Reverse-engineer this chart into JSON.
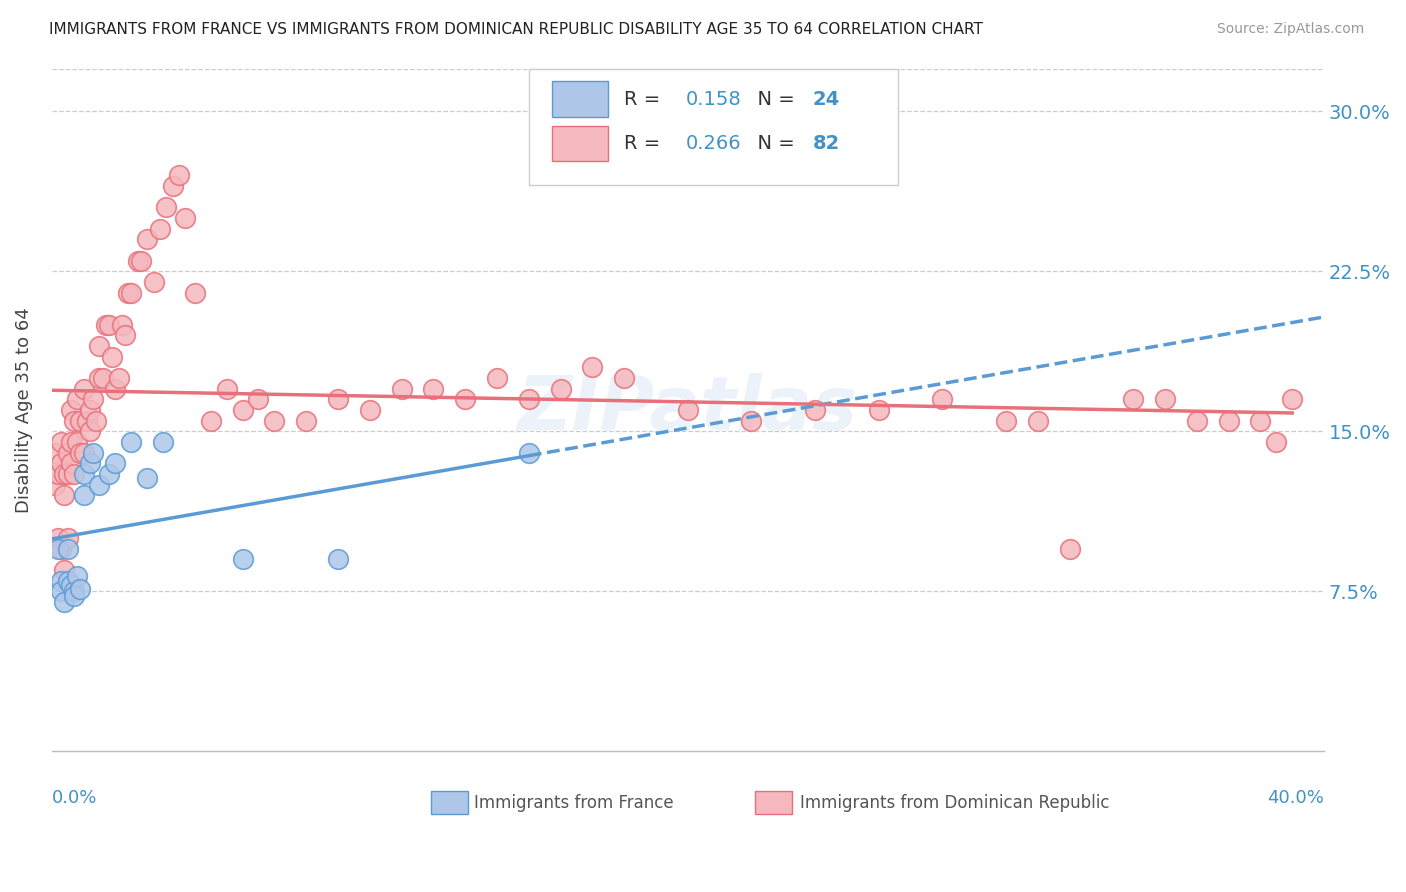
{
  "title": "IMMIGRANTS FROM FRANCE VS IMMIGRANTS FROM DOMINICAN REPUBLIC DISABILITY AGE 35 TO 64 CORRELATION CHART",
  "source": "Source: ZipAtlas.com",
  "ylabel": "Disability Age 35 to 64",
  "xlim": [
    0.0,
    0.4
  ],
  "ylim": [
    0.0,
    0.32
  ],
  "yticks": [
    0.075,
    0.15,
    0.225,
    0.3
  ],
  "ytick_labels": [
    "7.5%",
    "15.0%",
    "22.5%",
    "30.0%"
  ],
  "france_color": "#5b9bd5",
  "france_color_fill": "#aec7e8",
  "dr_color": "#e8707a",
  "dr_color_fill": "#f4b8be",
  "france_R": 0.158,
  "france_N": 24,
  "dr_R": 0.266,
  "dr_N": 82,
  "france_scatter_x": [
    0.002,
    0.003,
    0.003,
    0.004,
    0.005,
    0.005,
    0.006,
    0.007,
    0.007,
    0.008,
    0.009,
    0.01,
    0.01,
    0.012,
    0.013,
    0.015,
    0.018,
    0.02,
    0.025,
    0.03,
    0.035,
    0.06,
    0.09,
    0.15
  ],
  "france_scatter_y": [
    0.095,
    0.08,
    0.075,
    0.07,
    0.095,
    0.08,
    0.078,
    0.075,
    0.073,
    0.082,
    0.076,
    0.13,
    0.12,
    0.135,
    0.14,
    0.125,
    0.13,
    0.135,
    0.145,
    0.128,
    0.145,
    0.09,
    0.09,
    0.14
  ],
  "dr_scatter_x": [
    0.001,
    0.001,
    0.002,
    0.002,
    0.003,
    0.003,
    0.003,
    0.004,
    0.004,
    0.004,
    0.005,
    0.005,
    0.005,
    0.006,
    0.006,
    0.006,
    0.007,
    0.007,
    0.008,
    0.008,
    0.009,
    0.009,
    0.01,
    0.01,
    0.011,
    0.012,
    0.012,
    0.013,
    0.014,
    0.015,
    0.015,
    0.016,
    0.017,
    0.018,
    0.019,
    0.02,
    0.021,
    0.022,
    0.023,
    0.024,
    0.025,
    0.027,
    0.028,
    0.03,
    0.032,
    0.034,
    0.036,
    0.038,
    0.04,
    0.042,
    0.045,
    0.05,
    0.055,
    0.06,
    0.065,
    0.07,
    0.08,
    0.09,
    0.1,
    0.11,
    0.12,
    0.13,
    0.14,
    0.15,
    0.16,
    0.17,
    0.18,
    0.2,
    0.22,
    0.24,
    0.26,
    0.28,
    0.3,
    0.31,
    0.32,
    0.34,
    0.35,
    0.36,
    0.37,
    0.38,
    0.385,
    0.39
  ],
  "dr_scatter_y": [
    0.125,
    0.14,
    0.13,
    0.1,
    0.135,
    0.145,
    0.095,
    0.13,
    0.12,
    0.085,
    0.14,
    0.13,
    0.1,
    0.135,
    0.145,
    0.16,
    0.13,
    0.155,
    0.165,
    0.145,
    0.14,
    0.155,
    0.14,
    0.17,
    0.155,
    0.16,
    0.15,
    0.165,
    0.155,
    0.175,
    0.19,
    0.175,
    0.2,
    0.2,
    0.185,
    0.17,
    0.175,
    0.2,
    0.195,
    0.215,
    0.215,
    0.23,
    0.23,
    0.24,
    0.22,
    0.245,
    0.255,
    0.265,
    0.27,
    0.25,
    0.215,
    0.155,
    0.17,
    0.16,
    0.165,
    0.155,
    0.155,
    0.165,
    0.16,
    0.17,
    0.17,
    0.165,
    0.175,
    0.165,
    0.17,
    0.18,
    0.175,
    0.16,
    0.155,
    0.16,
    0.16,
    0.165,
    0.155,
    0.155,
    0.095,
    0.165,
    0.165,
    0.155,
    0.155,
    0.155,
    0.145,
    0.165
  ]
}
